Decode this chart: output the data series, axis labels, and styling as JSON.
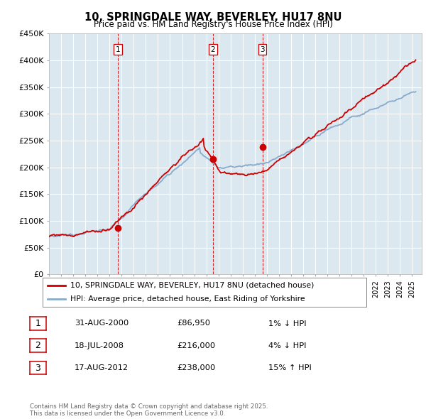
{
  "title_line1": "10, SPRINGDALE WAY, BEVERLEY, HU17 8NU",
  "title_line2": "Price paid vs. HM Land Registry's House Price Index (HPI)",
  "legend_label1": "10, SPRINGDALE WAY, BEVERLEY, HU17 8NU (detached house)",
  "legend_label2": "HPI: Average price, detached house, East Riding of Yorkshire",
  "sale_color": "#cc0000",
  "hpi_color": "#88aacc",
  "bg_color": "#dce8f0",
  "table_entries": [
    {
      "num": "1",
      "date": "31-AUG-2000",
      "price": "£86,950",
      "pct": "1% ↓ HPI"
    },
    {
      "num": "2",
      "date": "18-JUL-2008",
      "price": "£216,000",
      "pct": "4% ↓ HPI"
    },
    {
      "num": "3",
      "date": "17-AUG-2012",
      "price": "£238,000",
      "pct": "15% ↑ HPI"
    }
  ],
  "footer": "Contains HM Land Registry data © Crown copyright and database right 2025.\nThis data is licensed under the Open Government Licence v3.0.",
  "ylim": [
    0,
    450000
  ],
  "yticks": [
    0,
    50000,
    100000,
    150000,
    200000,
    250000,
    300000,
    350000,
    400000,
    450000
  ],
  "sale_points": [
    {
      "year": 2000.67,
      "price": 86950
    },
    {
      "year": 2008.54,
      "price": 216000
    },
    {
      "year": 2012.63,
      "price": 238000
    }
  ],
  "sale_labels": [
    "1",
    "2",
    "3"
  ]
}
